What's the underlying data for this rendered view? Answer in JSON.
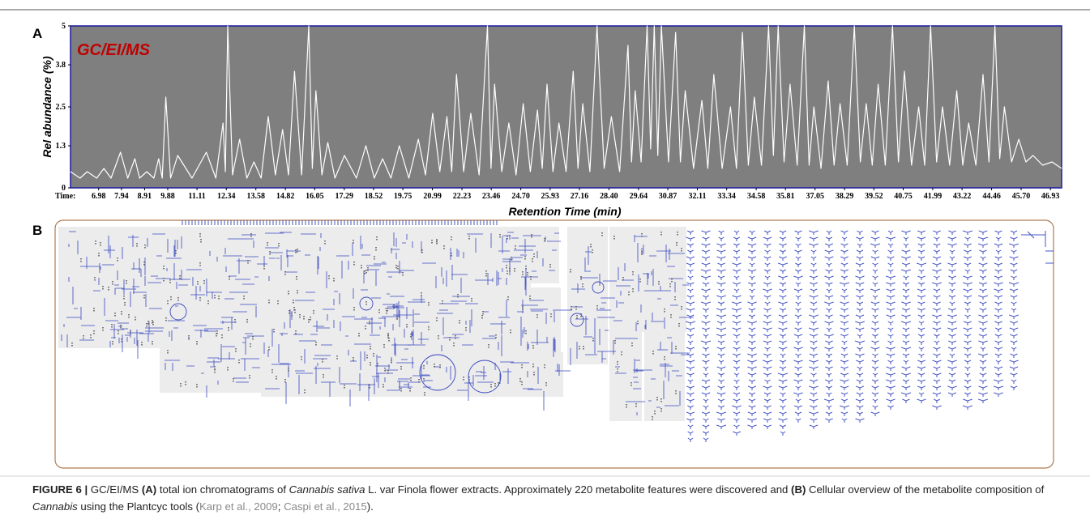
{
  "chart_data": {
    "type": "line",
    "panel_label": "A",
    "annotation": "GC/EI/MS",
    "ylabel": "Rel abundance (%)",
    "xlabel": "Retention Time (min)",
    "xtick_prefix": "Time:",
    "background": "#7f7f7f",
    "annotation_color": "#c00000",
    "xlim": [
      5.8,
      47.4
    ],
    "ylim": [
      0,
      5
    ],
    "yticks": [
      0,
      1.3,
      2.5,
      3.8,
      5
    ],
    "xticks": [
      6.98,
      7.94,
      8.91,
      9.88,
      11.11,
      12.34,
      13.58,
      14.82,
      16.05,
      17.29,
      18.52,
      19.75,
      20.99,
      22.23,
      23.46,
      {
        "value": 24.7,
        "label": "24.70"
      },
      25.93,
      27.16,
      {
        "value": 28.4,
        "label": "28.40"
      },
      29.64,
      30.87,
      32.11,
      33.34,
      34.58,
      35.81,
      37.05,
      38.29,
      39.52,
      40.75,
      41.99,
      43.22,
      44.46,
      {
        "value": 45.7,
        "label": "45.70"
      },
      46.93
    ],
    "series": [
      {
        "color": "#ffffff",
        "x": [
          5.8,
          6.2,
          6.5,
          6.9,
          7.2,
          7.5,
          7.9,
          8.2,
          8.5,
          8.7,
          9.0,
          9.3,
          9.5,
          9.65,
          9.8,
          10.0,
          10.3,
          10.9,
          11.5,
          11.9,
          12.2,
          12.3,
          12.4,
          12.6,
          12.9,
          13.2,
          13.5,
          13.8,
          14.1,
          14.4,
          14.7,
          14.95,
          15.2,
          15.5,
          15.8,
          15.95,
          16.1,
          16.35,
          16.6,
          16.9,
          17.3,
          17.8,
          18.2,
          18.55,
          18.9,
          19.25,
          19.6,
          20.0,
          20.4,
          20.7,
          21.0,
          21.3,
          21.6,
          21.8,
          22.0,
          22.3,
          22.6,
          22.95,
          23.3,
          23.45,
          23.6,
          23.9,
          24.2,
          24.5,
          24.8,
          25.1,
          25.4,
          25.6,
          25.8,
          26.05,
          26.3,
          26.6,
          26.9,
          27.1,
          27.3,
          27.6,
          27.9,
          28.2,
          28.5,
          28.85,
          29.2,
          29.35,
          29.5,
          29.75,
          30.0,
          30.15,
          30.3,
          30.45,
          30.6,
          30.9,
          31.2,
          31.4,
          31.6,
          31.95,
          32.3,
          32.55,
          32.8,
          33.15,
          33.5,
          33.75,
          34.0,
          34.25,
          34.5,
          34.8,
          35.1,
          35.3,
          35.5,
          35.75,
          36.0,
          36.3,
          36.6,
          36.8,
          37.0,
          37.3,
          37.6,
          37.85,
          38.1,
          38.4,
          38.7,
          38.95,
          39.2,
          39.45,
          39.7,
          40.0,
          40.3,
          40.55,
          40.8,
          41.1,
          41.4,
          41.65,
          41.9,
          42.15,
          42.4,
          42.7,
          43.0,
          43.25,
          43.5,
          43.8,
          44.1,
          44.35,
          44.6,
          44.8,
          45.0,
          45.3,
          45.6,
          45.9,
          46.2,
          46.6,
          47.0,
          47.4
        ],
        "values": [
          0.5,
          0.3,
          0.5,
          0.3,
          0.6,
          0.3,
          1.1,
          0.3,
          0.9,
          0.3,
          0.5,
          0.3,
          0.9,
          0.3,
          2.8,
          0.3,
          1.0,
          0.3,
          1.1,
          0.3,
          2.0,
          0.5,
          5,
          0.4,
          1.5,
          0.3,
          0.8,
          0.3,
          2.2,
          0.4,
          1.8,
          0.4,
          3.6,
          0.4,
          5,
          0.6,
          3.0,
          0.4,
          1.4,
          0.3,
          1.0,
          0.3,
          1.3,
          0.3,
          0.9,
          0.3,
          1.3,
          0.3,
          1.5,
          0.4,
          2.3,
          0.5,
          2.2,
          0.5,
          3.5,
          0.5,
          2.3,
          0.4,
          5,
          0.6,
          3.2,
          0.5,
          2.0,
          0.4,
          2.6,
          0.5,
          2.4,
          0.6,
          3.2,
          0.5,
          2.0,
          0.5,
          3.6,
          0.6,
          2.6,
          0.5,
          5,
          0.6,
          2.2,
          0.5,
          4.4,
          0.8,
          3.0,
          0.8,
          5,
          1.2,
          5,
          1.0,
          5,
          0.8,
          4.8,
          0.8,
          3.0,
          0.6,
          2.7,
          0.6,
          3.5,
          0.6,
          2.5,
          0.6,
          4.8,
          0.7,
          2.8,
          0.7,
          5,
          1.0,
          5,
          0.8,
          3.2,
          0.7,
          5,
          0.7,
          2.5,
          0.6,
          3.3,
          0.7,
          2.6,
          0.7,
          5,
          0.8,
          2.6,
          0.7,
          3.2,
          0.7,
          5,
          0.8,
          3.6,
          0.7,
          2.5,
          0.7,
          5,
          0.8,
          2.5,
          0.7,
          3.0,
          0.7,
          2.0,
          0.7,
          3.5,
          0.8,
          5,
          0.9,
          2.5,
          0.8,
          1.5,
          0.8,
          1.0,
          0.7,
          0.8,
          0.6
        ]
      }
    ]
  },
  "panel_b": {
    "label": "B"
  },
  "caption": {
    "runs": [
      {
        "text": "FIGURE 6 |",
        "style": "bold"
      },
      {
        "text": " GC/EI/MS ",
        "style": "plain"
      },
      {
        "text": "(A)",
        "style": "bold"
      },
      {
        "text": " total ion chromatograms of ",
        "style": "plain"
      },
      {
        "text": "Cannabis sativa",
        "style": "italic"
      },
      {
        "text": " L. var Finola flower extracts. Approximately 220 metabolite features were discovered and ",
        "style": "plain"
      },
      {
        "text": "(B)",
        "style": "bold"
      },
      {
        "text": " Cellular overview of the metabolite composition of ",
        "style": "plain"
      },
      {
        "text": "Cannabis",
        "style": "italic"
      },
      {
        "text": " using the Plantcyc tools (",
        "style": "plain"
      },
      {
        "text": "Karp et al., 2009",
        "style": "link"
      },
      {
        "text": "; ",
        "style": "plain"
      },
      {
        "text": "Caspi et al., 2015",
        "style": "link"
      },
      {
        "text": ").",
        "style": "plain"
      }
    ]
  }
}
